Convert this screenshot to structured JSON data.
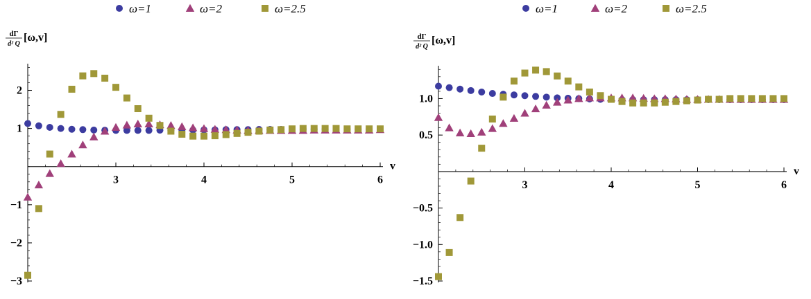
{
  "chart_data": [
    {
      "type": "scatter",
      "ylabel": {
        "num": "dΓ",
        "den": "d² Q",
        "args": "[ω,v]"
      },
      "xlabel": "v",
      "xlim": [
        2.0,
        6.0
      ],
      "ylim": [
        -3.0,
        2.7
      ],
      "xticks": [
        3,
        4,
        5,
        6
      ],
      "yticks": [
        -3,
        -2,
        -1,
        1,
        2
      ],
      "legend": "top-center",
      "series": [
        {
          "name": "ω=1",
          "marker": "circle",
          "color": "#3c3ca0",
          "x": [
            2.0,
            2.125,
            2.25,
            2.375,
            2.5,
            2.625,
            2.75,
            2.875,
            3.0,
            3.125,
            3.25,
            3.375,
            3.5,
            3.625,
            3.75,
            3.875,
            4.0,
            4.125,
            4.25,
            4.375,
            4.5,
            4.625,
            4.75,
            4.875,
            5.0,
            5.125,
            5.25,
            5.375,
            5.5,
            5.625,
            5.75,
            5.875,
            6.0
          ],
          "y": [
            1.13,
            1.07,
            1.03,
            1.0,
            0.98,
            0.97,
            0.96,
            0.955,
            0.95,
            0.95,
            0.95,
            0.95,
            0.955,
            0.955,
            0.96,
            0.96,
            0.965,
            0.965,
            0.97,
            0.97,
            0.97,
            0.975,
            0.975,
            0.975,
            0.98,
            0.98,
            0.98,
            0.98,
            0.98,
            0.985,
            0.985,
            0.985,
            0.985
          ]
        },
        {
          "name": "ω=2",
          "marker": "triangle",
          "color": "#a0407a",
          "x": [
            2.0,
            2.125,
            2.25,
            2.375,
            2.5,
            2.625,
            2.75,
            2.875,
            3.0,
            3.125,
            3.25,
            3.375,
            3.5,
            3.625,
            3.75,
            3.875,
            4.0,
            4.125,
            4.25,
            4.375,
            4.5,
            4.625,
            4.75,
            4.875,
            5.0,
            5.125,
            5.25,
            5.375,
            5.5,
            5.625,
            5.75,
            5.875,
            6.0
          ],
          "y": [
            -0.8,
            -0.48,
            -0.18,
            0.08,
            0.33,
            0.57,
            0.78,
            0.93,
            1.03,
            1.09,
            1.12,
            1.12,
            1.1,
            1.08,
            1.05,
            1.02,
            1.0,
            0.98,
            0.97,
            0.96,
            0.95,
            0.95,
            0.95,
            0.95,
            0.95,
            0.95,
            0.96,
            0.96,
            0.96,
            0.96,
            0.96,
            0.96,
            0.97
          ]
        },
        {
          "name": "ω=2.5",
          "marker": "square",
          "color": "#a09838",
          "x": [
            2.0,
            2.125,
            2.25,
            2.375,
            2.5,
            2.625,
            2.75,
            2.875,
            3.0,
            3.125,
            3.25,
            3.375,
            3.5,
            3.625,
            3.75,
            3.875,
            4.0,
            4.125,
            4.25,
            4.375,
            4.5,
            4.625,
            4.75,
            4.875,
            5.0,
            5.125,
            5.25,
            5.375,
            5.5,
            5.625,
            5.75,
            5.875,
            6.0
          ],
          "y": [
            -2.85,
            -1.1,
            0.33,
            1.37,
            2.03,
            2.38,
            2.44,
            2.32,
            2.08,
            1.8,
            1.52,
            1.27,
            1.08,
            0.93,
            0.85,
            0.8,
            0.8,
            0.81,
            0.84,
            0.87,
            0.9,
            0.93,
            0.96,
            0.97,
            0.99,
            1.0,
            1.0,
            1.0,
            1.0,
            0.99,
            0.99,
            0.99,
            0.99
          ]
        }
      ]
    },
    {
      "type": "scatter",
      "ylabel": {
        "num": "dΓ",
        "den": "d² Q",
        "args": "[ω,v]"
      },
      "xlabel": "v",
      "xlim": [
        2.0,
        6.0
      ],
      "ylim": [
        -1.5,
        1.45
      ],
      "xticks": [
        3,
        4,
        5,
        6
      ],
      "yticks": [
        -1.5,
        -1.0,
        -0.5,
        0.5,
        1.0
      ],
      "yticklabels": [
        "−1.5",
        "−1.0",
        "−0.5",
        "0.5",
        "1.0"
      ],
      "legend": "top-center",
      "series": [
        {
          "name": "ω=1",
          "marker": "circle",
          "color": "#3c3ca0",
          "x": [
            2.0,
            2.125,
            2.25,
            2.375,
            2.5,
            2.625,
            2.75,
            2.875,
            3.0,
            3.125,
            3.25,
            3.375,
            3.5,
            3.625,
            3.75,
            3.875,
            4.0,
            4.125,
            4.25,
            4.375,
            4.5,
            4.625,
            4.75,
            4.875,
            5.0,
            5.125,
            5.25,
            5.375,
            5.5,
            5.625,
            5.75,
            5.875,
            6.0
          ],
          "y": [
            1.17,
            1.15,
            1.13,
            1.11,
            1.09,
            1.07,
            1.06,
            1.05,
            1.04,
            1.03,
            1.02,
            1.01,
            1.005,
            1.0,
            0.995,
            0.99,
            0.99,
            0.985,
            0.985,
            0.985,
            0.985,
            0.985,
            0.985,
            0.985,
            0.985,
            0.985,
            0.985,
            0.985,
            0.985,
            0.985,
            0.985,
            0.985,
            0.985
          ]
        },
        {
          "name": "ω=2",
          "marker": "triangle",
          "color": "#a0407a",
          "x": [
            2.0,
            2.125,
            2.25,
            2.375,
            2.5,
            2.625,
            2.75,
            2.875,
            3.0,
            3.125,
            3.25,
            3.375,
            3.5,
            3.625,
            3.75,
            3.875,
            4.0,
            4.125,
            4.25,
            4.375,
            4.5,
            4.625,
            4.75,
            4.875,
            5.0,
            5.125,
            5.25,
            5.375,
            5.5,
            5.625,
            5.75,
            5.875,
            6.0
          ],
          "y": [
            0.74,
            0.6,
            0.53,
            0.52,
            0.54,
            0.59,
            0.66,
            0.73,
            0.8,
            0.86,
            0.91,
            0.95,
            0.98,
            1.0,
            1.01,
            1.01,
            1.01,
            1.01,
            1.01,
            1.005,
            1.0,
            1.0,
            0.995,
            0.99,
            0.99,
            0.99,
            0.99,
            0.99,
            0.99,
            0.99,
            0.99,
            0.99,
            0.99
          ]
        },
        {
          "name": "ω=2.5",
          "marker": "square",
          "color": "#a09838",
          "x": [
            2.0,
            2.125,
            2.25,
            2.375,
            2.5,
            2.625,
            2.75,
            2.875,
            3.0,
            3.125,
            3.25,
            3.375,
            3.5,
            3.625,
            3.75,
            3.875,
            4.0,
            4.125,
            4.25,
            4.375,
            4.5,
            4.625,
            4.75,
            4.875,
            5.0,
            5.125,
            5.25,
            5.375,
            5.5,
            5.625,
            5.75,
            5.875,
            6.0
          ],
          "y": [
            -1.44,
            -1.11,
            -0.63,
            -0.13,
            0.32,
            0.72,
            1.02,
            1.24,
            1.35,
            1.39,
            1.37,
            1.31,
            1.24,
            1.16,
            1.09,
            1.04,
            0.99,
            0.96,
            0.94,
            0.94,
            0.94,
            0.95,
            0.96,
            0.97,
            0.98,
            0.99,
            0.99,
            1.0,
            1.0,
            1.0,
            1.0,
            1.0,
            1.0
          ]
        }
      ]
    }
  ]
}
